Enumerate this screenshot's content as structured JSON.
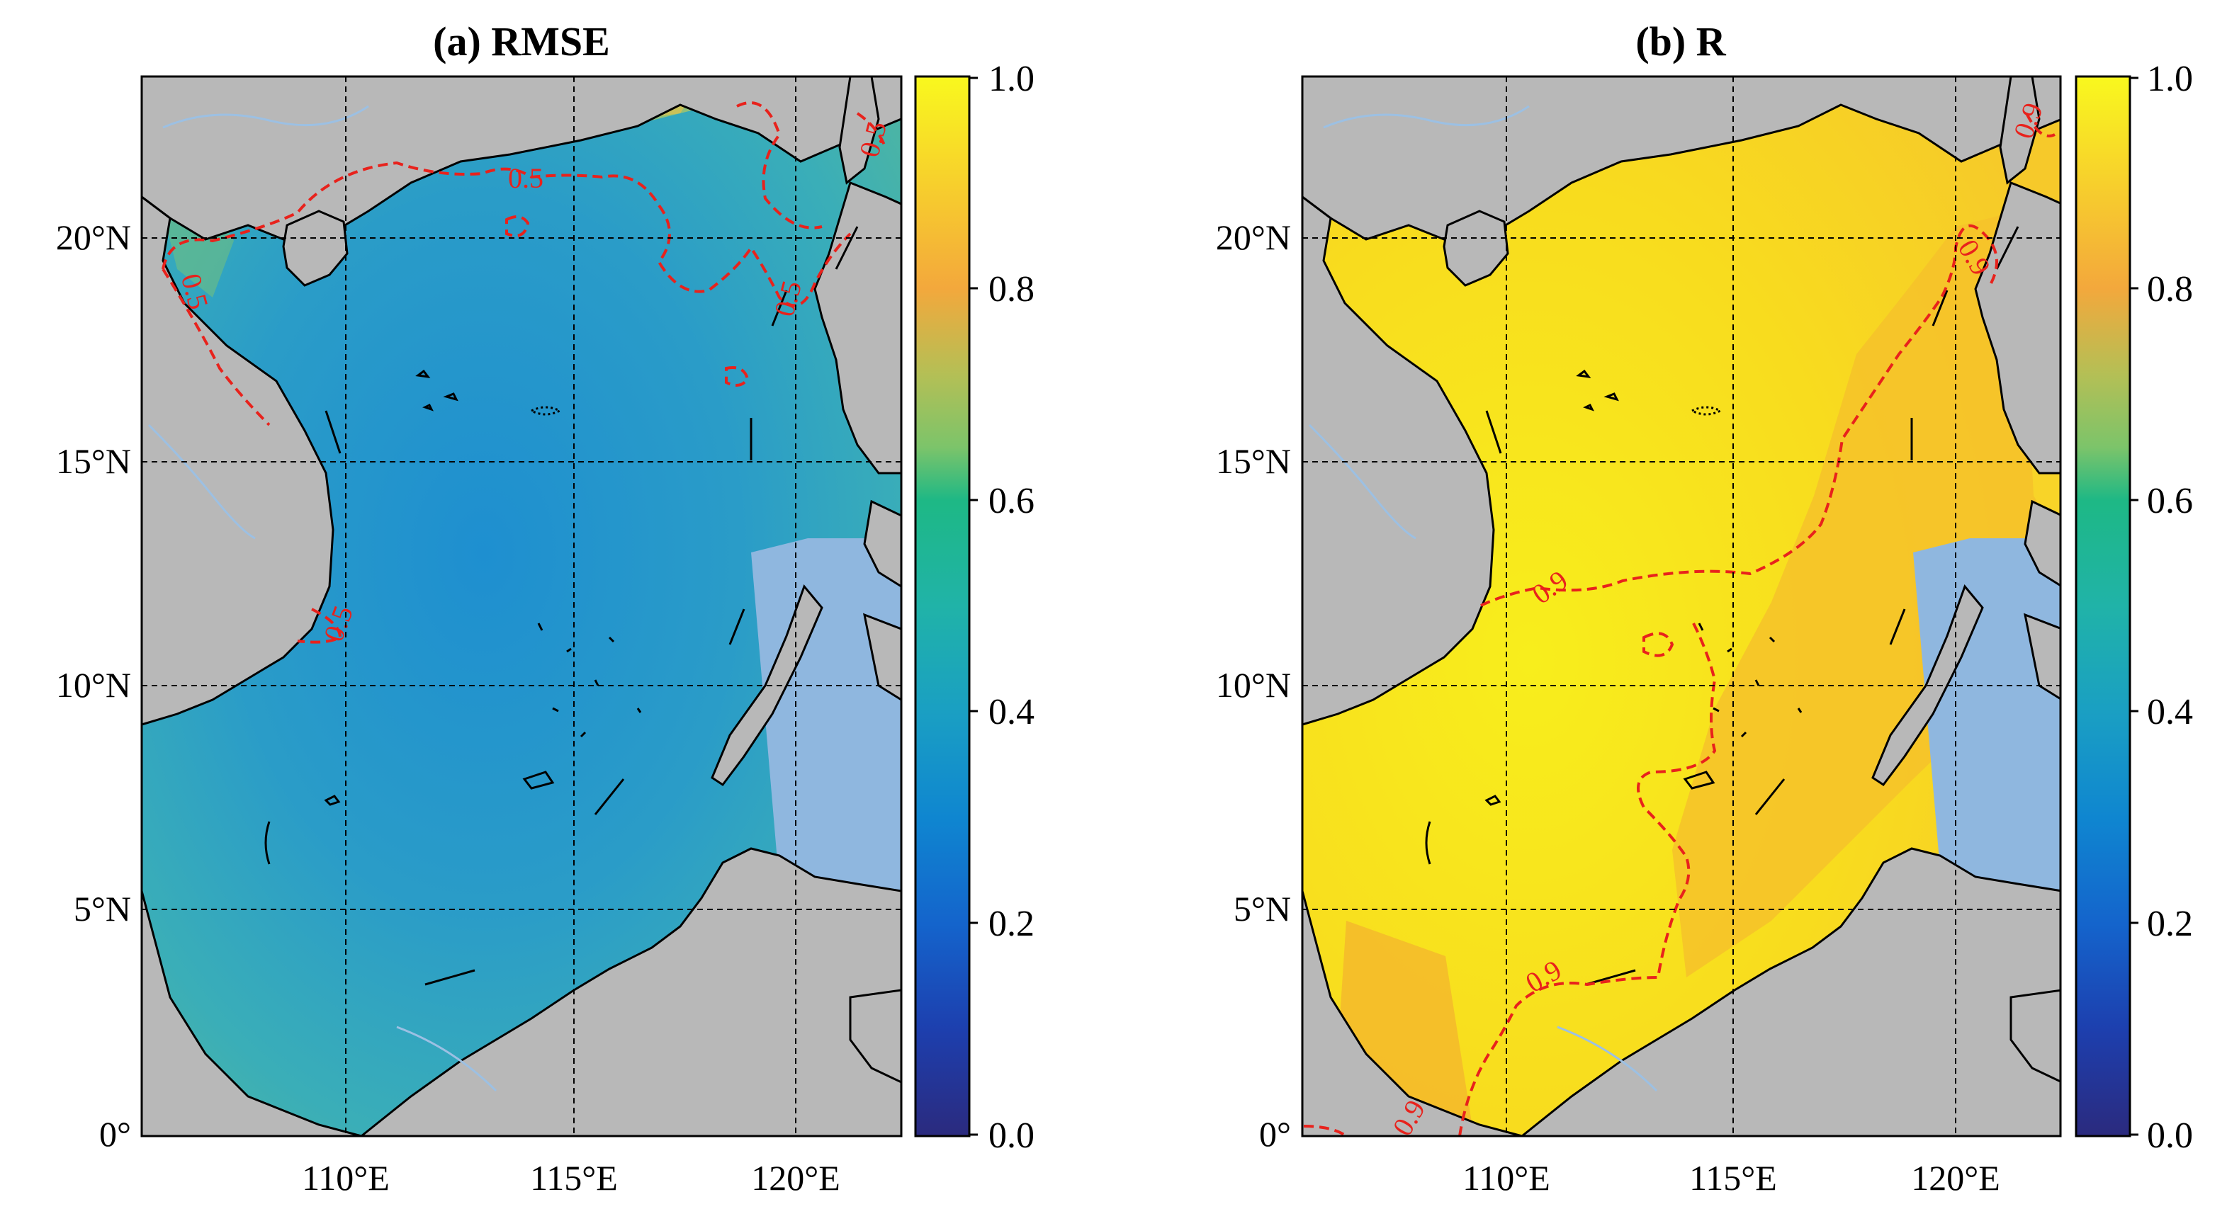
{
  "panels": [
    {
      "id": "a",
      "title": "(a) RMSE",
      "x_ticks": [
        "110°E",
        "115°E",
        "120°E"
      ],
      "y_ticks": [
        "0°",
        "5°N",
        "10°N",
        "15°N",
        "20°N"
      ],
      "colorbar": {
        "min": 0.0,
        "max": 1.0,
        "ticks": [
          "0.0",
          "0.2",
          "0.4",
          "0.6",
          "0.8",
          "1.0"
        ]
      },
      "contour_level": "0.5",
      "contour_color": "#e8221c",
      "sea_color": "#2a98c6"
    },
    {
      "id": "b",
      "title": "(b) R",
      "x_ticks": [
        "110°E",
        "115°E",
        "120°E"
      ],
      "y_ticks": [
        "0°",
        "5°N",
        "10°N",
        "15°N",
        "20°N"
      ],
      "colorbar": {
        "min": 0.0,
        "max": 1.0,
        "ticks": [
          "0.0",
          "0.2",
          "0.4",
          "0.6",
          "0.8",
          "1.0"
        ]
      },
      "contour_level": "0.9",
      "contour_color": "#e8221c",
      "sea_color": "#f6d300"
    }
  ],
  "land_color": "#b8b8b8",
  "masked_ocean_color": "#8fb7df",
  "river_color": "#9cc0e3",
  "colormap": [
    "#2b2a7e",
    "#1d4fb8",
    "#0f78d2",
    "#1294c6",
    "#23abb0",
    "#21b98e",
    "#7dc56b",
    "#c6bd47",
    "#f5ab3a",
    "#f8d42a",
    "#f9f71e"
  ]
}
